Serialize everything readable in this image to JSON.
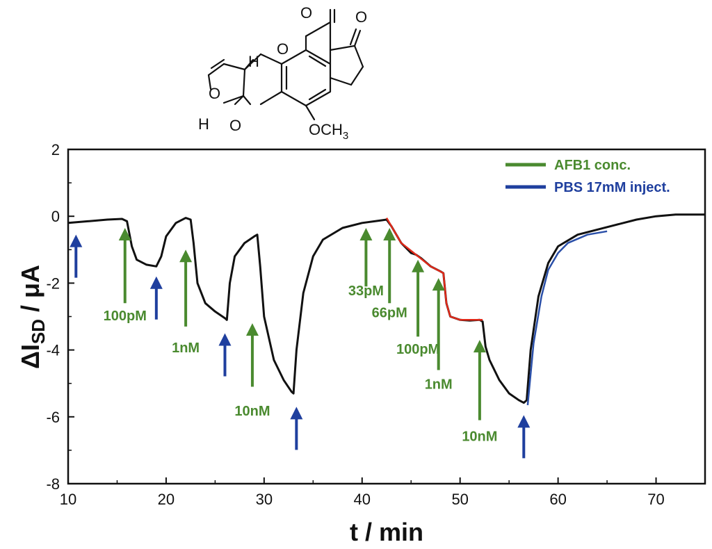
{
  "molecule": {
    "labels": {
      "o1": "O",
      "o2": "O",
      "o3": "O",
      "o4": "O",
      "o5": "O",
      "h1": "H",
      "h2": "H",
      "och3": "OCH",
      "och3_sub": "3"
    }
  },
  "chart_data": {
    "type": "line",
    "xlabel": "t / min",
    "ylabel_main": "ΔI",
    "ylabel_sub": "SD",
    "ylabel_unit": " / μA",
    "xlim": [
      10,
      75
    ],
    "ylim": [
      -8,
      2
    ],
    "x_ticks": [
      10,
      20,
      30,
      40,
      50,
      60,
      70
    ],
    "y_ticks": [
      -8,
      -6,
      -4,
      -2,
      0,
      2
    ],
    "grid": false,
    "legend_position": "top-right",
    "colors": {
      "data": "#111111",
      "fit_red": "#e02a1a",
      "fit_blue": "#2a4fa8",
      "afb1": "#4a8a2f",
      "pbs": "#1f3f9e"
    },
    "legend": [
      {
        "label": "AFB1 conc.",
        "color": "#4a8a2f"
      },
      {
        "label": "PBS 17mM inject.",
        "color": "#1f3f9e"
      }
    ],
    "series": [
      {
        "color": "#111111",
        "points": [
          [
            10,
            -0.2
          ],
          [
            12,
            -0.15
          ],
          [
            14,
            -0.1
          ],
          [
            15.5,
            -0.08
          ],
          [
            16,
            -0.15
          ],
          [
            16.5,
            -0.9
          ],
          [
            17,
            -1.3
          ],
          [
            18,
            -1.45
          ],
          [
            19,
            -1.5
          ],
          [
            19.5,
            -1.2
          ],
          [
            20,
            -0.6
          ],
          [
            21,
            -0.2
          ],
          [
            22,
            -0.05
          ],
          [
            22.5,
            -0.1
          ],
          [
            22.8,
            -0.8
          ],
          [
            23.2,
            -2.0
          ],
          [
            24,
            -2.6
          ],
          [
            25,
            -2.85
          ],
          [
            26,
            -3.05
          ],
          [
            26.2,
            -3.1
          ],
          [
            26.5,
            -2.0
          ],
          [
            27,
            -1.2
          ],
          [
            28,
            -0.8
          ],
          [
            29,
            -0.6
          ],
          [
            29.3,
            -0.55
          ],
          [
            29.6,
            -1.5
          ],
          [
            30,
            -3.0
          ],
          [
            31,
            -4.3
          ],
          [
            32,
            -4.9
          ],
          [
            32.8,
            -5.25
          ],
          [
            33,
            -5.3
          ],
          [
            33.3,
            -4.0
          ],
          [
            34,
            -2.3
          ],
          [
            35,
            -1.2
          ],
          [
            36,
            -0.7
          ],
          [
            38,
            -0.35
          ],
          [
            40,
            -0.2
          ],
          [
            42,
            -0.12
          ],
          [
            42.5,
            -0.1
          ],
          [
            43,
            -0.3
          ],
          [
            44,
            -0.8
          ],
          [
            45,
            -1.1
          ],
          [
            45.5,
            -1.15
          ],
          [
            46,
            -1.25
          ],
          [
            47,
            -1.5
          ],
          [
            48,
            -1.65
          ],
          [
            48.3,
            -1.7
          ],
          [
            48.6,
            -2.6
          ],
          [
            49,
            -3.0
          ],
          [
            50,
            -3.1
          ],
          [
            51,
            -3.12
          ],
          [
            52,
            -3.1
          ],
          [
            52.3,
            -3.15
          ],
          [
            52.6,
            -3.9
          ],
          [
            53,
            -4.3
          ],
          [
            54,
            -4.9
          ],
          [
            55,
            -5.3
          ],
          [
            56,
            -5.5
          ],
          [
            56.5,
            -5.58
          ],
          [
            56.8,
            -5.5
          ],
          [
            57.2,
            -4.0
          ],
          [
            58,
            -2.4
          ],
          [
            59,
            -1.4
          ],
          [
            60,
            -0.9
          ],
          [
            62,
            -0.55
          ],
          [
            64,
            -0.4
          ],
          [
            66,
            -0.25
          ],
          [
            68,
            -0.1
          ],
          [
            70,
            0.0
          ],
          [
            72,
            0.05
          ],
          [
            75,
            0.05
          ]
        ]
      },
      {
        "color": "#e02a1a",
        "points": [
          [
            42.5,
            -0.05
          ],
          [
            44,
            -0.8
          ],
          [
            45.5,
            -1.15
          ],
          [
            47,
            -1.5
          ],
          [
            48.3,
            -1.7
          ],
          [
            48.6,
            -2.6
          ],
          [
            49,
            -3.0
          ],
          [
            50,
            -3.1
          ],
          [
            52.3,
            -3.1
          ]
        ]
      },
      {
        "color": "#2a4fa8",
        "points": [
          [
            56.9,
            -5.65
          ],
          [
            57.5,
            -3.8
          ],
          [
            58.3,
            -2.4
          ],
          [
            59,
            -1.6
          ],
          [
            60,
            -1.1
          ],
          [
            61,
            -0.8
          ],
          [
            63,
            -0.55
          ],
          [
            65,
            -0.45
          ]
        ]
      }
    ],
    "pbs_arrows": [
      10.8,
      19,
      26,
      33.3,
      56.5
    ],
    "afb1_annotations": [
      {
        "label": "100pM",
        "x": 15.8,
        "ytop": -0.35,
        "ybottom": -2.6,
        "label_y": -2.95
      },
      {
        "label": "1nM",
        "x": 22,
        "ytop": -1.0,
        "ybottom": -3.3,
        "label_y": -3.9
      },
      {
        "label": "10nM",
        "x": 28.8,
        "ytop": -3.2,
        "ybottom": -5.1,
        "label_y": -5.8
      },
      {
        "label": "33pM",
        "x": 40.4,
        "ytop": -0.35,
        "ybottom": -2.1,
        "label_y": -2.2
      },
      {
        "label": "66pM",
        "x": 42.8,
        "ytop": -0.35,
        "ybottom": -2.6,
        "label_y": -2.85
      },
      {
        "label": "100pM",
        "x": 45.7,
        "ytop": -1.3,
        "ybottom": -3.6,
        "label_y": -3.95
      },
      {
        "label": "1nM",
        "x": 47.8,
        "ytop": -1.85,
        "ybottom": -4.6,
        "label_y": -5.0
      },
      {
        "label": "10nM",
        "x": 52,
        "ytop": -3.7,
        "ybottom": -6.1,
        "label_y": -6.55
      }
    ]
  }
}
